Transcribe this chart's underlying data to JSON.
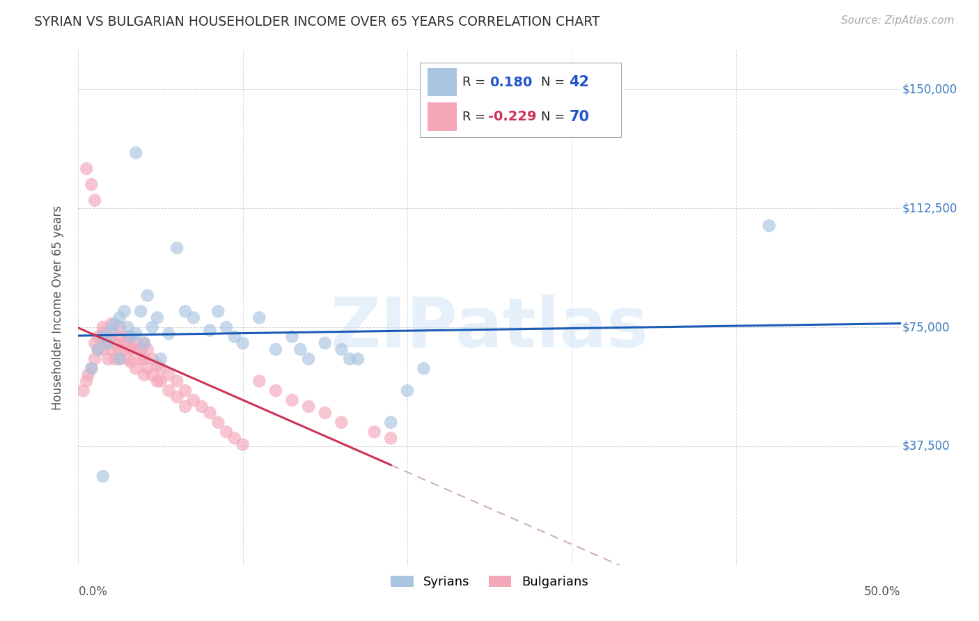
{
  "title": "SYRIAN VS BULGARIAN HOUSEHOLDER INCOME OVER 65 YEARS CORRELATION CHART",
  "source": "Source: ZipAtlas.com",
  "ylabel": "Householder Income Over 65 years",
  "ytick_labels": [
    "$37,500",
    "$75,000",
    "$112,500",
    "$150,000"
  ],
  "ytick_values": [
    37500,
    75000,
    112500,
    150000
  ],
  "ylim": [
    0,
    162500
  ],
  "xlim": [
    0.0,
    0.5
  ],
  "legend_r_syrian": "0.180",
  "legend_n_syrian": "42",
  "legend_r_bulgarian": "-0.229",
  "legend_n_bulgarian": "70",
  "syrian_color": "#a8c4e0",
  "bulgarian_color": "#f4a7b9",
  "syrian_line_color": "#1a5cb5",
  "bulgarian_line_color": "#cc3355",
  "bulgarian_dash_color": "#d0b0be",
  "watermark_text": "ZIPatlas",
  "syrian_x": [
    0.008,
    0.012,
    0.015,
    0.018,
    0.02,
    0.022,
    0.025,
    0.025,
    0.028,
    0.03,
    0.032,
    0.035,
    0.038,
    0.04,
    0.042,
    0.045,
    0.048,
    0.05,
    0.055,
    0.06,
    0.065,
    0.07,
    0.08,
    0.085,
    0.09,
    0.095,
    0.1,
    0.11,
    0.12,
    0.13,
    0.135,
    0.14,
    0.15,
    0.16,
    0.165,
    0.17,
    0.19,
    0.2,
    0.21,
    0.035,
    0.42,
    0.015
  ],
  "syrian_y": [
    62000,
    68000,
    72000,
    70000,
    74000,
    76000,
    78000,
    65000,
    80000,
    75000,
    72000,
    73000,
    80000,
    70000,
    85000,
    75000,
    78000,
    65000,
    73000,
    100000,
    80000,
    78000,
    74000,
    80000,
    75000,
    72000,
    70000,
    78000,
    68000,
    72000,
    68000,
    65000,
    70000,
    68000,
    65000,
    65000,
    45000,
    55000,
    62000,
    130000,
    107000,
    28000
  ],
  "bulgarian_x": [
    0.003,
    0.005,
    0.006,
    0.008,
    0.01,
    0.01,
    0.012,
    0.012,
    0.015,
    0.015,
    0.015,
    0.017,
    0.018,
    0.018,
    0.02,
    0.02,
    0.02,
    0.022,
    0.022,
    0.025,
    0.025,
    0.025,
    0.025,
    0.028,
    0.028,
    0.03,
    0.03,
    0.03,
    0.032,
    0.032,
    0.035,
    0.035,
    0.035,
    0.038,
    0.038,
    0.04,
    0.04,
    0.04,
    0.042,
    0.042,
    0.045,
    0.045,
    0.048,
    0.048,
    0.05,
    0.05,
    0.055,
    0.055,
    0.06,
    0.06,
    0.065,
    0.065,
    0.07,
    0.075,
    0.08,
    0.085,
    0.09,
    0.095,
    0.1,
    0.11,
    0.12,
    0.13,
    0.14,
    0.15,
    0.16,
    0.18,
    0.19,
    0.005,
    0.008,
    0.01
  ],
  "bulgarian_y": [
    55000,
    58000,
    60000,
    62000,
    65000,
    70000,
    68000,
    72000,
    73000,
    75000,
    68000,
    72000,
    70000,
    65000,
    76000,
    72000,
    68000,
    70000,
    65000,
    75000,
    72000,
    68000,
    65000,
    70000,
    68000,
    72000,
    70000,
    65000,
    68000,
    64000,
    70000,
    68000,
    62000,
    68000,
    65000,
    70000,
    65000,
    60000,
    68000,
    62000,
    65000,
    60000,
    63000,
    58000,
    62000,
    58000,
    60000,
    55000,
    58000,
    53000,
    55000,
    50000,
    52000,
    50000,
    48000,
    45000,
    42000,
    40000,
    38000,
    58000,
    55000,
    52000,
    50000,
    48000,
    45000,
    42000,
    40000,
    125000,
    120000,
    115000
  ]
}
